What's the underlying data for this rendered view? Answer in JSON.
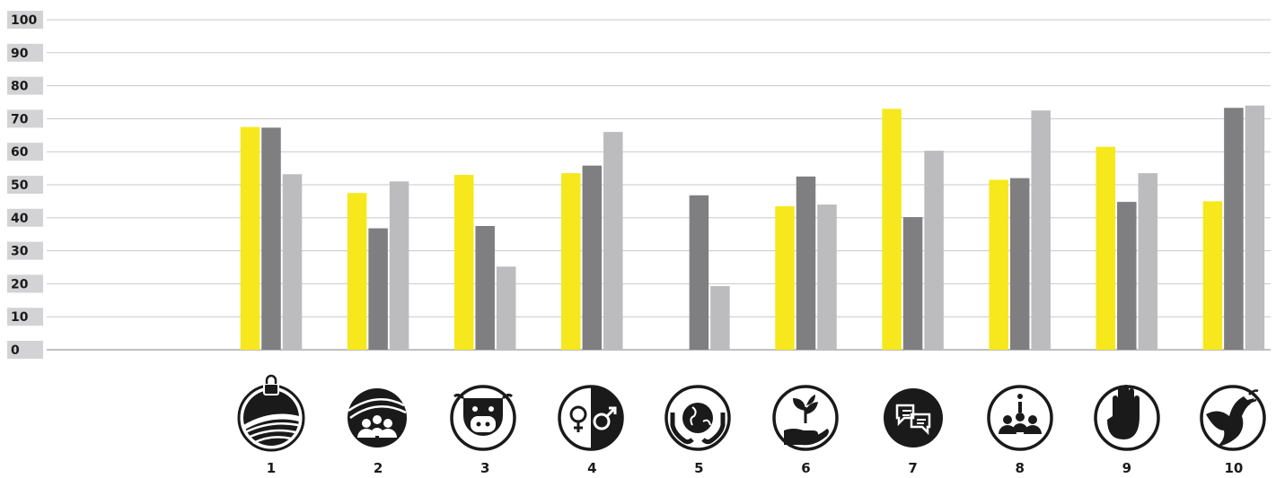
{
  "chart_data": {
    "type": "bar",
    "categories": [
      "1",
      "2",
      "3",
      "4",
      "5",
      "6",
      "7",
      "8",
      "9",
      "10"
    ],
    "series": [
      {
        "values": [
          67.5,
          47.5,
          53,
          53.5,
          null,
          43.5,
          73,
          51.5,
          61.5,
          45
        ],
        "color": "#f6e81c"
      },
      {
        "values": [
          67.3,
          36.8,
          37.5,
          55.8,
          46.8,
          52.5,
          40.2,
          52,
          44.8,
          73.3
        ],
        "color": "#7f7f82"
      },
      {
        "values": [
          53.2,
          51,
          25.2,
          66,
          19.3,
          44,
          60.3,
          72.5,
          53.5,
          74
        ],
        "color": "#bcbcbe"
      }
    ],
    "y_ticks": [
      "0",
      "10",
      "20",
      "30",
      "40",
      "50",
      "60",
      "70",
      "80",
      "90",
      "100"
    ],
    "ylim": [
      0,
      100
    ],
    "grid": true,
    "icons": [
      "land-lock-icon",
      "land-community-icon",
      "livestock-cow-icon",
      "gender-equality-icon",
      "earth-protection-icon",
      "plant-in-hand-icon",
      "dialogue-icon",
      "information-community-icon",
      "stop-hand-icon",
      "peace-dove-icon"
    ]
  }
}
